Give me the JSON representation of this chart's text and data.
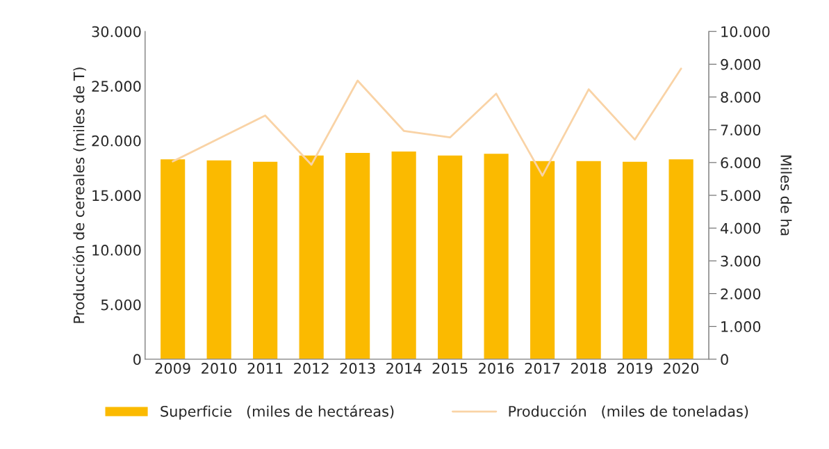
{
  "chart_data": {
    "type": "bar",
    "ylabel": "Producción de cereales (miles de T)",
    "y2label": "Miles de ha",
    "categories": [
      "2009",
      "2010",
      "2011",
      "2012",
      "2013",
      "2014",
      "2015",
      "2016",
      "2017",
      "2018",
      "2019",
      "2020"
    ],
    "series": [
      {
        "name": "Superficie   (miles de hectáreas)",
        "axis": "y2",
        "color": "#fbba00",
        "values": [
          6110,
          6080,
          6040,
          6230,
          6310,
          6350,
          6230,
          6280,
          6060,
          6060,
          6040,
          6110
        ]
      },
      {
        "name": "Producción   (miles de toneladas)",
        "type": "line",
        "axis": "y",
        "color": "#f9d3a6",
        "values": [
          18100,
          20200,
          22300,
          17800,
          25500,
          20900,
          20300,
          24300,
          16800,
          24700,
          20100,
          26600
        ]
      }
    ],
    "ylim": [
      0,
      30000
    ],
    "yticks": [
      0,
      {
        "value": 5000,
        "label": "5.000"
      },
      {
        "value": 10000,
        "label": "10.000"
      },
      {
        "value": 15000,
        "label": "15.000"
      },
      {
        "value": 20000,
        "label": "20.000"
      },
      {
        "value": 25000,
        "label": "25.000"
      },
      {
        "value": 30000,
        "label": "30.000"
      }
    ],
    "y2lim": [
      0,
      10000
    ],
    "y2ticks": [
      0,
      {
        "value": 1000,
        "label": "1.000"
      },
      {
        "value": 2000,
        "label": "2.000"
      },
      {
        "value": 3000,
        "label": "3.000"
      },
      {
        "value": 4000,
        "label": "4.000"
      },
      {
        "value": 5000,
        "label": "5.000"
      },
      {
        "value": 6000,
        "label": "6.000"
      },
      {
        "value": 7000,
        "label": "7.000"
      },
      {
        "value": 8000,
        "label": "8.000"
      },
      {
        "value": 9000,
        "label": "9.000"
      },
      {
        "value": 10000,
        "label": "10.000"
      }
    ],
    "legend": "bottom",
    "grid": false
  }
}
